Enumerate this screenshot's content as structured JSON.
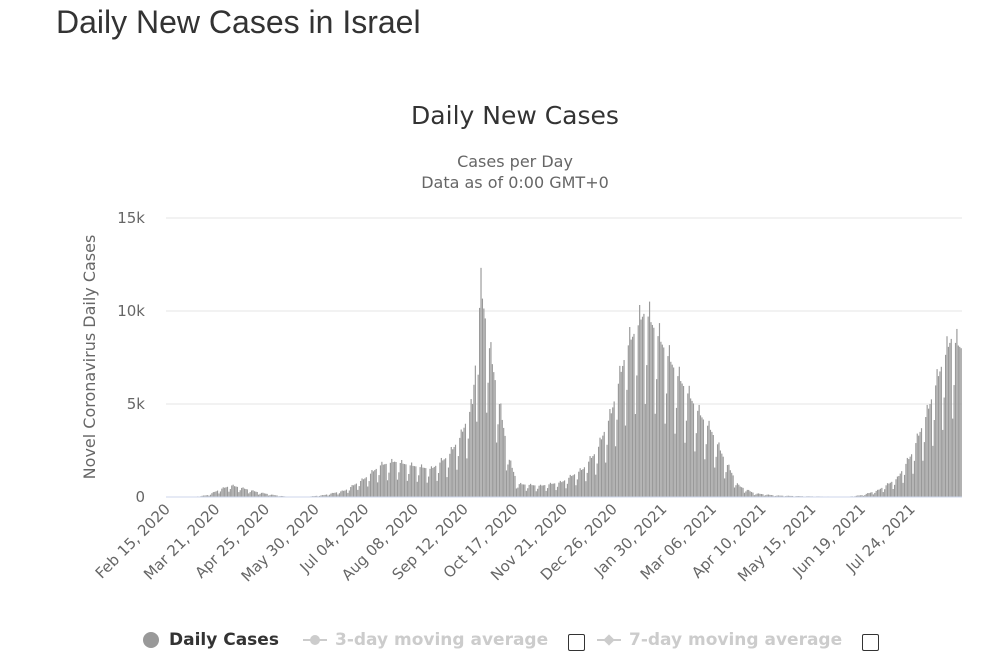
{
  "page_title": "Daily New Cases in Israel",
  "chart_data": {
    "type": "bar",
    "title": "Daily New Cases",
    "subtitle_line1": "Cases per Day",
    "subtitle_line2": "Data as of 0:00 GMT+0",
    "ylabel": "Novel Coronavirus Daily Cases",
    "xlabel": "",
    "ylim": [
      0,
      15000
    ],
    "y_ticks": [
      {
        "value": 0,
        "label": "0"
      },
      {
        "value": 5000,
        "label": "5k"
      },
      {
        "value": 10000,
        "label": "10k"
      },
      {
        "value": 15000,
        "label": "15k"
      }
    ],
    "x_tick_labels": [
      "Feb 15, 2020",
      "Mar 21, 2020",
      "Apr 25, 2020",
      "May 30, 2020",
      "Jul 04, 2020",
      "Aug 08, 2020",
      "Sep 12, 2020",
      "Oct 17, 2020",
      "Nov 21, 2020",
      "Dec 26, 2020",
      "Jan 30, 2021",
      "Mar 06, 2021",
      "Apr 10, 2021",
      "May 15, 2021",
      "Jun 19, 2021",
      "Jul 24, 2021"
    ],
    "x_range": [
      "Feb 15, 2020",
      "Aug 29, 2021"
    ],
    "bar_color": "#999999",
    "grid": true,
    "legend_position": "bottom",
    "series_name": "Daily Cases",
    "series_profile": [
      {
        "date": "Feb 15, 2020",
        "value": 0
      },
      {
        "date": "Mar 05, 2020",
        "value": 5
      },
      {
        "date": "Mar 15, 2020",
        "value": 100
      },
      {
        "date": "Mar 25, 2020",
        "value": 450
      },
      {
        "date": "Apr 01, 2020",
        "value": 620
      },
      {
        "date": "Apr 10, 2020",
        "value": 450
      },
      {
        "date": "Apr 20, 2020",
        "value": 250
      },
      {
        "date": "May 01, 2020",
        "value": 100
      },
      {
        "date": "May 10, 2020",
        "value": 20
      },
      {
        "date": "May 25, 2020",
        "value": 20
      },
      {
        "date": "Jun 05, 2020",
        "value": 100
      },
      {
        "date": "Jun 20, 2020",
        "value": 350
      },
      {
        "date": "Jul 04, 2020",
        "value": 1000
      },
      {
        "date": "Jul 15, 2020",
        "value": 1700
      },
      {
        "date": "Jul 25, 2020",
        "value": 1900
      },
      {
        "date": "Aug 05, 2020",
        "value": 1700
      },
      {
        "date": "Aug 20, 2020",
        "value": 1500
      },
      {
        "date": "Sep 01, 2020",
        "value": 2200
      },
      {
        "date": "Sep 10, 2020",
        "value": 3300
      },
      {
        "date": "Sep 18, 2020",
        "value": 5000
      },
      {
        "date": "Sep 24, 2020",
        "value": 11200
      },
      {
        "date": "Sep 30, 2020",
        "value": 8000
      },
      {
        "date": "Oct 07, 2020",
        "value": 5000
      },
      {
        "date": "Oct 14, 2020",
        "value": 2000
      },
      {
        "date": "Oct 20, 2020",
        "value": 700
      },
      {
        "date": "Nov 05, 2020",
        "value": 600
      },
      {
        "date": "Nov 20, 2020",
        "value": 800
      },
      {
        "date": "Dec 05, 2020",
        "value": 1500
      },
      {
        "date": "Dec 15, 2020",
        "value": 2500
      },
      {
        "date": "Dec 25, 2020",
        "value": 4500
      },
      {
        "date": "Jan 05, 2021",
        "value": 8000
      },
      {
        "date": "Jan 18, 2021",
        "value": 10000
      },
      {
        "date": "Jan 28, 2021",
        "value": 8500
      },
      {
        "date": "Feb 10, 2021",
        "value": 6500
      },
      {
        "date": "Feb 25, 2021",
        "value": 4500
      },
      {
        "date": "Mar 06, 2021",
        "value": 3500
      },
      {
        "date": "Mar 15, 2021",
        "value": 2000
      },
      {
        "date": "Mar 25, 2021",
        "value": 600
      },
      {
        "date": "Apr 05, 2021",
        "value": 200
      },
      {
        "date": "Apr 20, 2021",
        "value": 80
      },
      {
        "date": "May 10, 2021",
        "value": 40
      },
      {
        "date": "Jun 10, 2021",
        "value": 15
      },
      {
        "date": "Jun 20, 2021",
        "value": 100
      },
      {
        "date": "Jul 01, 2021",
        "value": 350
      },
      {
        "date": "Jul 15, 2021",
        "value": 1000
      },
      {
        "date": "Jul 25, 2021",
        "value": 2300
      },
      {
        "date": "Aug 05, 2021",
        "value": 4500
      },
      {
        "date": "Aug 15, 2021",
        "value": 7000
      },
      {
        "date": "Aug 22, 2021",
        "value": 8500
      },
      {
        "date": "Aug 29, 2021",
        "value": 8000
      }
    ]
  },
  "legend": {
    "items": [
      {
        "label": "Daily Cases",
        "enabled": true
      },
      {
        "label": "3-day moving average",
        "enabled": false
      },
      {
        "label": "7-day moving average",
        "enabled": false
      }
    ]
  },
  "colors": {
    "bar": "#999999",
    "grid": "#e6e6e6",
    "axis": "#ccd6eb",
    "text": "#333333",
    "muted": "#666666",
    "disabled": "#cccccc"
  }
}
